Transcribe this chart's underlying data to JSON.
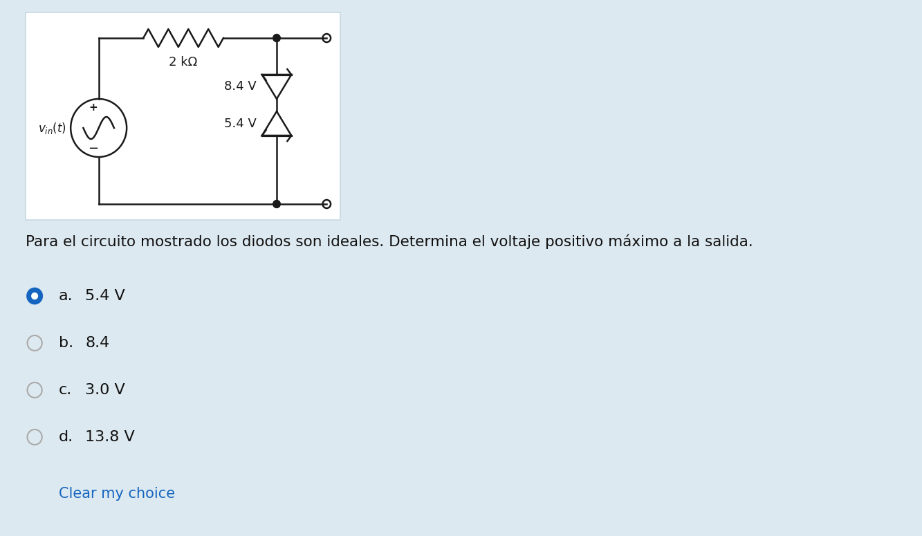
{
  "background_color": "#dde9f0",
  "panel_color": "#ffffff",
  "question_text": "Para el circuito mostrado los diodos son ideales. Determina el voltaje positivo máximo a la salida.",
  "options": [
    {
      "label": "a.",
      "text": "5.4 V",
      "selected": true
    },
    {
      "label": "b.",
      "text": "8.4",
      "selected": false
    },
    {
      "label": "c.",
      "text": "3.0 V",
      "selected": false
    },
    {
      "label": "d.",
      "text": "13.8 V",
      "selected": false
    }
  ],
  "clear_text": "Clear my choice",
  "clear_color": "#1565c0",
  "radio_color_selected": "#1565c0",
  "radio_color_unselected": "#aaaaaa",
  "resistor_label": "2 kΩ",
  "zener1_label": "8.4 V",
  "zener2_label": "5.4 V"
}
